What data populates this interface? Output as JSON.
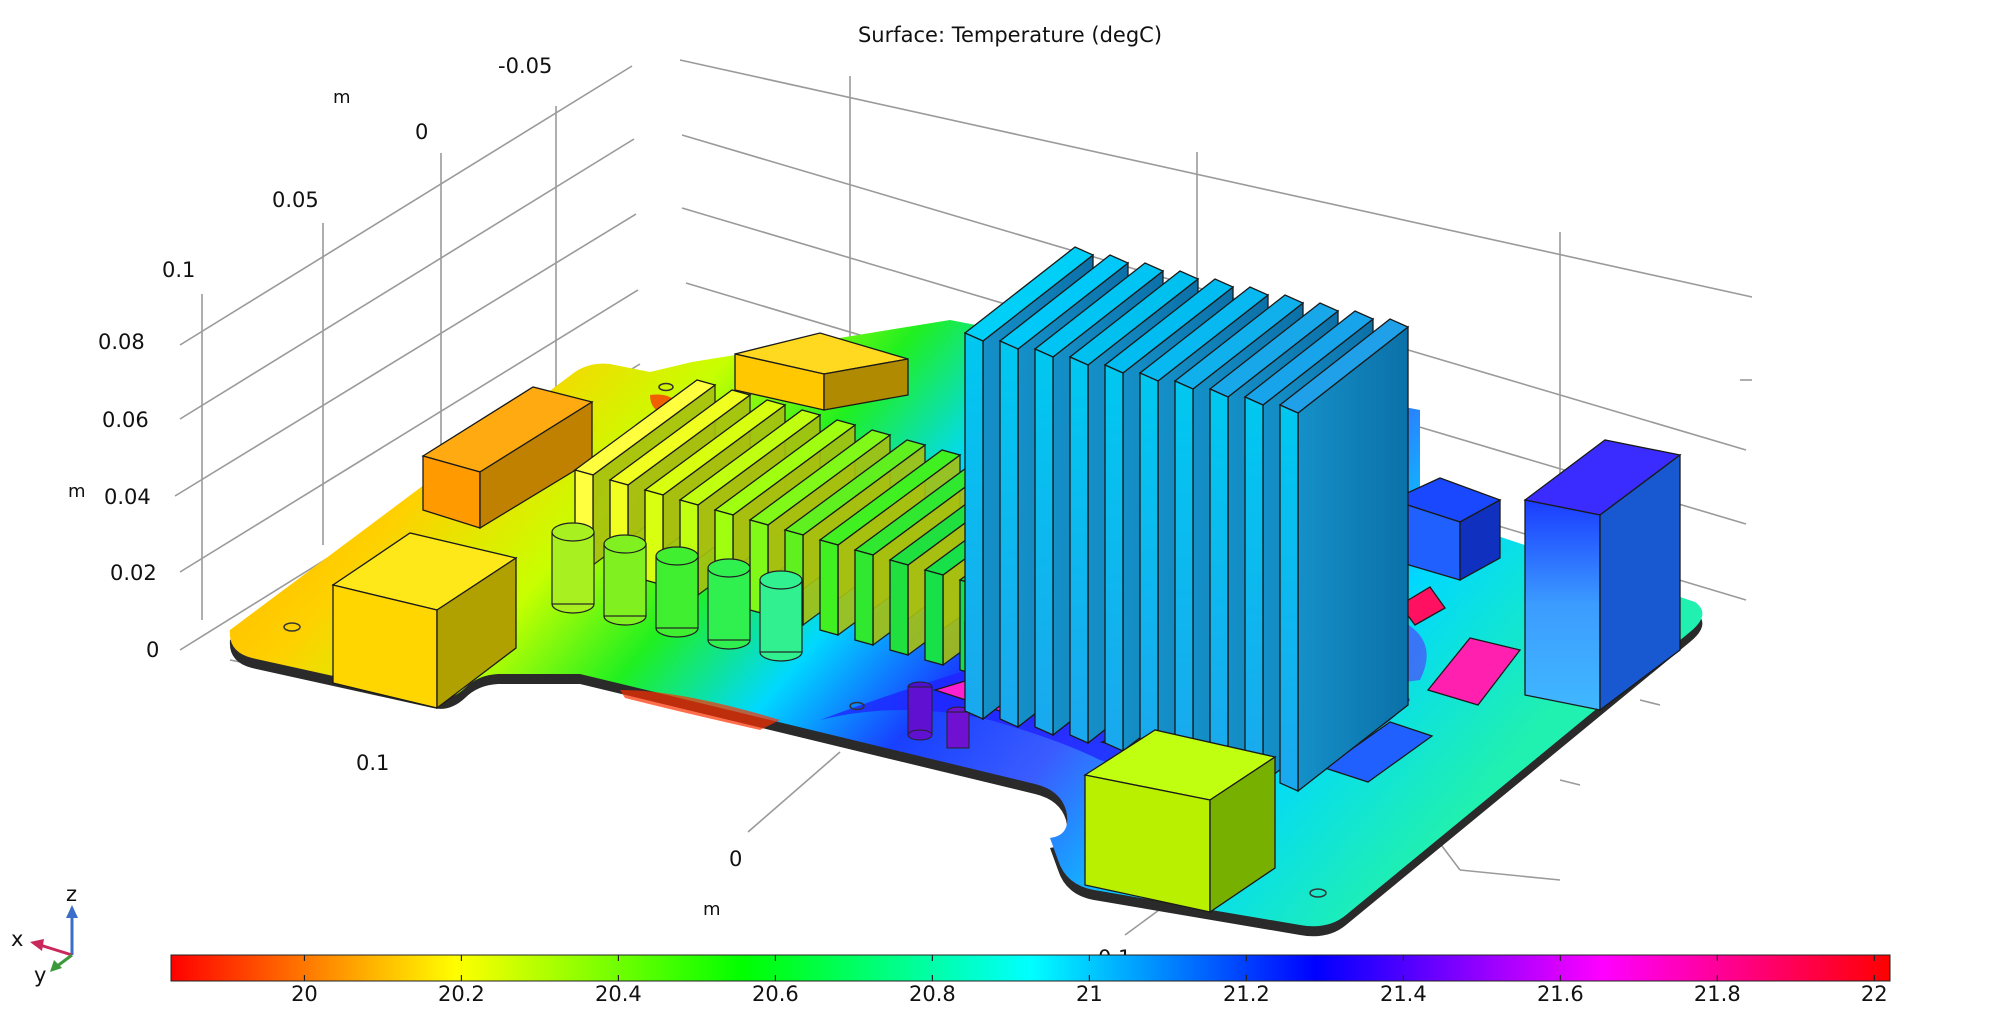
{
  "title": "Surface: Temperature (degC)",
  "axes": {
    "x_unit": "m",
    "y_unit": "m",
    "z_unit": "m",
    "y_ticks": [
      "-0.05",
      "0",
      "0.05",
      "0.1"
    ],
    "z_ticks": [
      "0.08",
      "0.06",
      "0.04",
      "0.02",
      "0"
    ],
    "x_ticks": [
      "0.1",
      "0",
      "0.1"
    ]
  },
  "triad": {
    "x": "x",
    "y": "y",
    "z": "z"
  },
  "colorbar": {
    "ticks": [
      "20",
      "20.2",
      "20.4",
      "20.6",
      "20.8",
      "21",
      "21.2",
      "21.4",
      "21.6",
      "21.8",
      "22"
    ],
    "min": 19.83,
    "max": 22.02,
    "colors": [
      "#ff0000",
      "#ffff00",
      "#00ff00",
      "#00ffff",
      "#0000ff",
      "#ff00ff",
      "#ff0000"
    ]
  }
}
